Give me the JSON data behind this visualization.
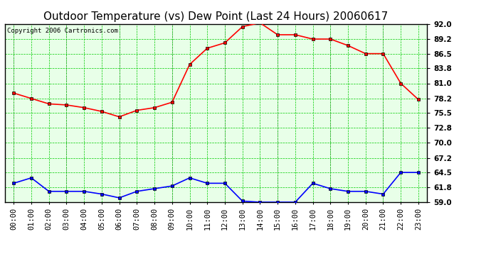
{
  "title": "Outdoor Temperature (vs) Dew Point (Last 24 Hours) 20060617",
  "copyright": "Copyright 2006 Cartronics.com",
  "x_labels": [
    "00:00",
    "01:00",
    "02:00",
    "03:00",
    "04:00",
    "05:00",
    "06:00",
    "07:00",
    "08:00",
    "09:00",
    "10:00",
    "11:00",
    "12:00",
    "13:00",
    "14:00",
    "15:00",
    "16:00",
    "17:00",
    "18:00",
    "19:00",
    "20:00",
    "21:00",
    "22:00",
    "23:00"
  ],
  "temp_data": [
    79.2,
    78.2,
    77.2,
    77.0,
    76.5,
    75.8,
    74.8,
    76.0,
    76.5,
    77.5,
    84.5,
    87.5,
    88.5,
    91.5,
    92.2,
    90.0,
    90.0,
    89.2,
    89.2,
    88.0,
    86.5,
    86.5,
    81.0,
    78.0
  ],
  "dew_data": [
    62.5,
    63.5,
    61.0,
    61.0,
    61.0,
    60.5,
    59.8,
    61.0,
    61.5,
    62.0,
    63.5,
    62.5,
    62.5,
    59.2,
    59.0,
    59.0,
    59.0,
    62.5,
    61.5,
    61.0,
    61.0,
    60.5,
    64.5,
    64.5
  ],
  "temp_color": "#ff0000",
  "dew_color": "#0000ff",
  "bg_color": "#ffffff",
  "plot_bg_color": "#e8ffe8",
  "grid_color_major_x": "#aaaaaa",
  "grid_color_green": "#00cc00",
  "ylim": [
    59.0,
    92.0
  ],
  "yticks": [
    59.0,
    61.8,
    64.5,
    67.2,
    70.0,
    72.8,
    75.5,
    78.2,
    81.0,
    83.8,
    86.5,
    89.2,
    92.0
  ],
  "title_fontsize": 11,
  "copyright_fontsize": 6.5,
  "tick_fontsize": 7.5
}
